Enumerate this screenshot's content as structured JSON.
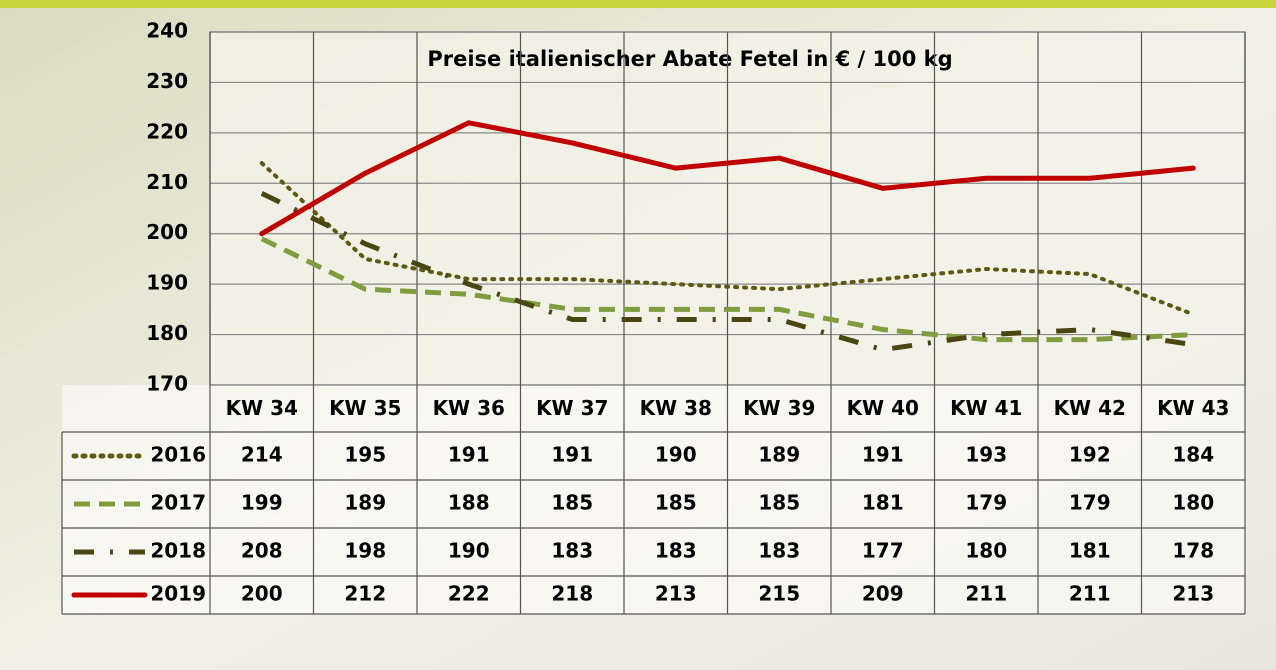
{
  "chart_data": {
    "type": "line",
    "title": "Preise italienischer Abate Fetel in € / 100 kg",
    "categories": [
      "KW 34",
      "KW 35",
      "KW 36",
      "KW 37",
      "KW 38",
      "KW 39",
      "KW 40",
      "KW 41",
      "KW 42",
      "KW 43"
    ],
    "series": [
      {
        "name": "2016",
        "color": "#5c5a12",
        "style": "dotted",
        "values": [
          214,
          195,
          191,
          191,
          190,
          189,
          191,
          193,
          192,
          184
        ]
      },
      {
        "name": "2017",
        "color": "#7f9d3e",
        "style": "dashed",
        "values": [
          199,
          189,
          188,
          185,
          185,
          185,
          181,
          179,
          179,
          180
        ]
      },
      {
        "name": "2018",
        "color": "#4a4612",
        "style": "dashdot",
        "values": [
          208,
          198,
          190,
          183,
          183,
          183,
          177,
          180,
          181,
          178
        ]
      },
      {
        "name": "2019",
        "color": "#c00000",
        "style": "solid",
        "values": [
          200,
          212,
          222,
          218,
          213,
          215,
          209,
          211,
          211,
          213
        ]
      }
    ],
    "ylim": [
      170,
      240
    ],
    "yticks": [
      170,
      180,
      190,
      200,
      210,
      220,
      230,
      240
    ],
    "grid": true
  }
}
